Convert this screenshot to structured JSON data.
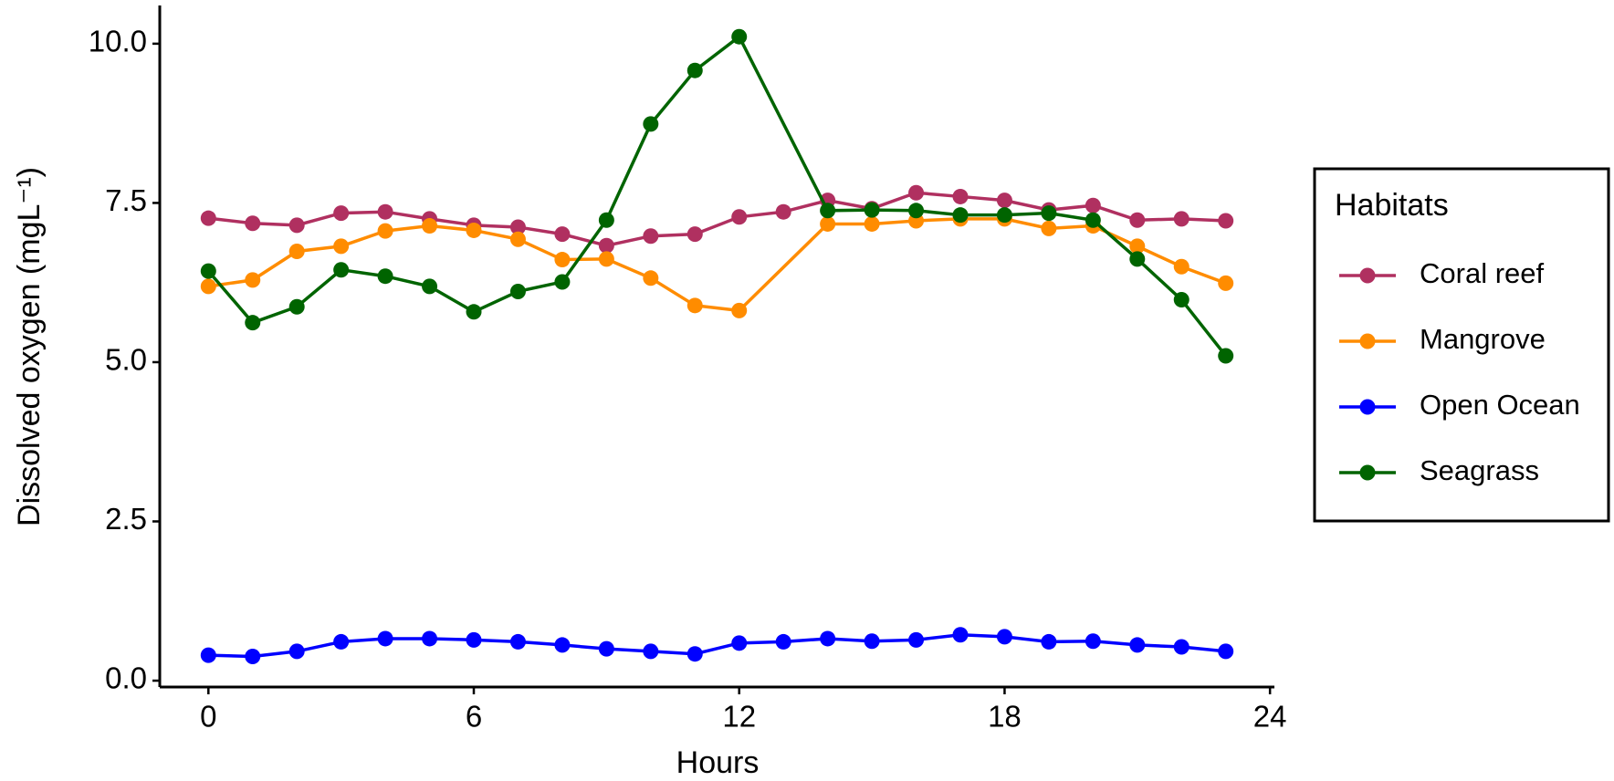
{
  "chart_data": {
    "type": "line",
    "x_label": "Hours",
    "y_label": "Dissolved oxygen (mgL⁻¹)",
    "x": [
      0,
      1,
      2,
      3,
      4,
      5,
      6,
      7,
      8,
      9,
      10,
      11,
      12,
      13,
      14,
      15,
      16,
      17,
      18,
      19,
      20,
      21,
      22,
      23
    ],
    "xlim": [
      -1.1,
      24.1
    ],
    "xticks": [
      0,
      6,
      12,
      18,
      24
    ],
    "ylim": [
      -0.1,
      10.6
    ],
    "yticks": [
      {
        "value": 0,
        "label": "0.0"
      },
      2.5,
      {
        "value": 5,
        "label": "5.0"
      },
      7.5,
      {
        "value": 10,
        "label": "10.0"
      }
    ],
    "legend_title": "Habitats",
    "legend_position": "right",
    "series": [
      {
        "name": "Coral reef",
        "color": "#b03060",
        "values": [
          7.26,
          7.18,
          7.15,
          7.34,
          7.36,
          7.25,
          7.15,
          7.12,
          7.01,
          6.83,
          6.98,
          7.01,
          7.28,
          7.36,
          7.54,
          7.41,
          7.66,
          7.6,
          7.54,
          7.39,
          7.46,
          7.23,
          7.25,
          7.22
        ]
      },
      {
        "name": "Mangrove",
        "color": "#ff8c00",
        "x": [
          0,
          1,
          2,
          3,
          4,
          5,
          6,
          7,
          8,
          9,
          10,
          11,
          12,
          14,
          15,
          16,
          17,
          18,
          19,
          20,
          21,
          22,
          23
        ],
        "values": [
          6.19,
          6.29,
          6.74,
          6.82,
          7.06,
          7.14,
          7.07,
          6.93,
          6.61,
          6.62,
          6.32,
          5.89,
          5.81,
          7.17,
          7.17,
          7.22,
          7.25,
          7.25,
          7.1,
          7.14,
          6.82,
          6.5,
          6.24
        ]
      },
      {
        "name": "Open Ocean",
        "color": "#0000ff",
        "values": [
          0.4,
          0.38,
          0.46,
          0.61,
          0.66,
          0.66,
          0.64,
          0.61,
          0.56,
          0.5,
          0.46,
          0.42,
          0.59,
          0.61,
          0.66,
          0.62,
          0.64,
          0.72,
          0.69,
          0.61,
          0.62,
          0.56,
          0.53,
          0.46
        ]
      },
      {
        "name": "Seagrass",
        "color": "#006400",
        "x": [
          0,
          1,
          2,
          3,
          4,
          5,
          6,
          7,
          8,
          9,
          10,
          11,
          12,
          14,
          15,
          16,
          17,
          18,
          19,
          20,
          21,
          22,
          23
        ],
        "values": [
          6.43,
          5.62,
          5.87,
          6.45,
          6.35,
          6.19,
          5.79,
          6.11,
          6.26,
          7.23,
          8.74,
          9.58,
          10.11,
          7.38,
          7.39,
          7.38,
          7.31,
          7.31,
          7.34,
          7.23,
          6.62,
          5.98,
          5.1
        ]
      }
    ]
  }
}
